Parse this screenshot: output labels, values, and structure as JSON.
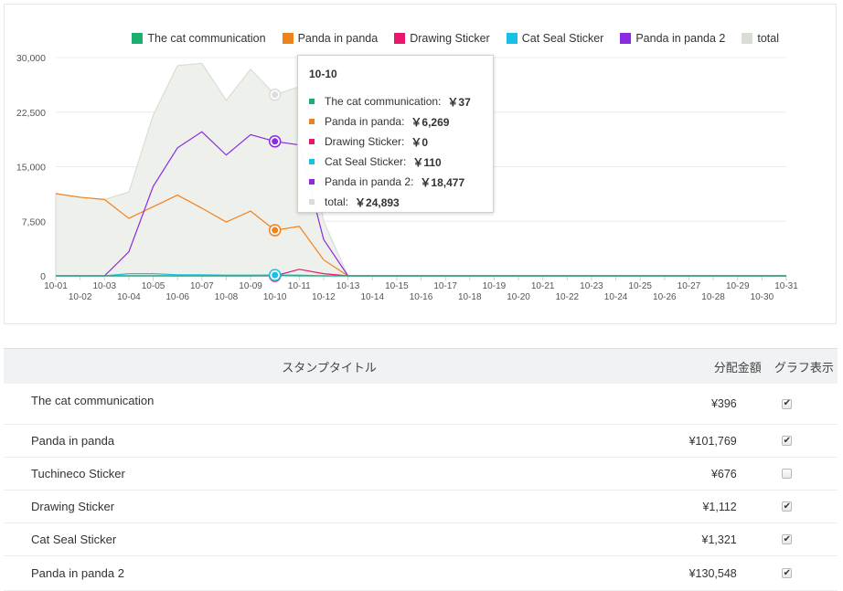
{
  "colors": {
    "cat": "#1aaf6e",
    "panda": "#f0821e",
    "drawing": "#e8176b",
    "catseal": "#18c0e8",
    "panda2": "#8a2be2",
    "total": "#d8ddd6"
  },
  "legend": [
    {
      "label": "The cat communication",
      "color": "#1aaf6e"
    },
    {
      "label": "Panda in panda",
      "color": "#f0821e"
    },
    {
      "label": "Drawing Sticker",
      "color": "#e8176b"
    },
    {
      "label": "Cat Seal Sticker",
      "color": "#18c0e8"
    },
    {
      "label": "Panda in panda 2",
      "color": "#8a2be2"
    },
    {
      "label": "total",
      "color": "#d8ddd6"
    }
  ],
  "tooltip": {
    "title": "10-10",
    "rows": [
      {
        "label": "The cat communication:",
        "value": "￥37",
        "color": "#1aaf6e"
      },
      {
        "label": "Panda in panda:",
        "value": "￥6,269",
        "color": "#f0821e"
      },
      {
        "label": "Drawing Sticker:",
        "value": "￥0",
        "color": "#e8176b"
      },
      {
        "label": "Cat Seal Sticker:",
        "value": "￥110",
        "color": "#18c0e8"
      },
      {
        "label": "Panda in panda 2:",
        "value": "￥18,477",
        "color": "#8a2be2"
      },
      {
        "label": "total:",
        "value": "￥24,893",
        "color": "#d8ddd6"
      }
    ]
  },
  "chart_data": {
    "type": "line",
    "categories": [
      "10-01",
      "10-02",
      "10-03",
      "10-04",
      "10-05",
      "10-06",
      "10-07",
      "10-08",
      "10-09",
      "10-10",
      "10-11",
      "10-12",
      "10-13",
      "10-14",
      "10-15",
      "10-16",
      "10-17",
      "10-18",
      "10-19",
      "10-20",
      "10-21",
      "10-22",
      "10-23",
      "10-24",
      "10-25",
      "10-26",
      "10-27",
      "10-28",
      "10-29",
      "10-30",
      "10-31"
    ],
    "y_ticks": [
      "0",
      "7,500",
      "15,000",
      "22,500",
      "30,000"
    ],
    "ylim": [
      0,
      30000
    ],
    "grid": true,
    "legend_position": "top-right",
    "series": [
      {
        "name": "The cat communication",
        "key": "cat",
        "values": [
          0,
          0,
          0,
          0,
          0,
          0,
          0,
          0,
          0,
          37,
          0,
          0,
          0,
          0,
          0,
          0,
          0,
          0,
          0,
          0,
          0,
          0,
          0,
          0,
          0,
          0,
          0,
          0,
          0,
          0,
          0
        ]
      },
      {
        "name": "Panda in panda",
        "key": "panda",
        "values": [
          11300,
          10800,
          10500,
          7900,
          9500,
          11100,
          9300,
          7400,
          8900,
          6269,
          6800,
          2200,
          0,
          0,
          0,
          0,
          0,
          0,
          0,
          0,
          0,
          0,
          0,
          0,
          0,
          0,
          0,
          0,
          0,
          0,
          0
        ]
      },
      {
        "name": "Drawing Sticker",
        "key": "drawing",
        "values": [
          0,
          0,
          0,
          0,
          0,
          0,
          0,
          0,
          0,
          0,
          900,
          300,
          0,
          0,
          0,
          0,
          0,
          0,
          0,
          0,
          0,
          0,
          0,
          0,
          0,
          0,
          0,
          0,
          0,
          0,
          0
        ]
      },
      {
        "name": "Cat Seal Sticker",
        "key": "catseal",
        "values": [
          0,
          0,
          0,
          300,
          300,
          150,
          150,
          100,
          100,
          110,
          100,
          0,
          0,
          0,
          0,
          0,
          0,
          0,
          0,
          0,
          0,
          0,
          0,
          0,
          0,
          0,
          0,
          0,
          0,
          0,
          0
        ]
      },
      {
        "name": "Panda in panda 2",
        "key": "panda2",
        "values": [
          0,
          0,
          0,
          3300,
          12300,
          17600,
          19800,
          16600,
          19400,
          18477,
          18000,
          5000,
          0,
          0,
          0,
          0,
          0,
          0,
          0,
          0,
          0,
          0,
          0,
          0,
          0,
          0,
          0,
          0,
          0,
          0,
          0
        ]
      },
      {
        "name": "total",
        "key": "total",
        "values": [
          11300,
          10800,
          10500,
          11500,
          22100,
          28900,
          29200,
          24100,
          28400,
          24893,
          26000,
          7500,
          0,
          0,
          0,
          0,
          0,
          0,
          0,
          0,
          0,
          0,
          0,
          0,
          0,
          0,
          0,
          0,
          0,
          0,
          0
        ]
      }
    ],
    "highlight_index": 9
  },
  "table": {
    "headers": {
      "title": "スタンプタイトル",
      "amount": "分配金額",
      "graph": "グラフ表示"
    },
    "rows": [
      {
        "title": "The cat communication",
        "amount": "¥396",
        "checked": true
      },
      {
        "title": "Panda in panda",
        "amount": "¥101,769",
        "checked": true
      },
      {
        "title": "Tuchineco Sticker",
        "amount": "¥676",
        "checked": false
      },
      {
        "title": "Drawing Sticker",
        "amount": "¥1,112",
        "checked": true
      },
      {
        "title": "Cat Seal Sticker",
        "amount": "¥1,321",
        "checked": true
      },
      {
        "title": "Panda in panda 2",
        "amount": "¥130,548",
        "checked": true
      }
    ]
  }
}
